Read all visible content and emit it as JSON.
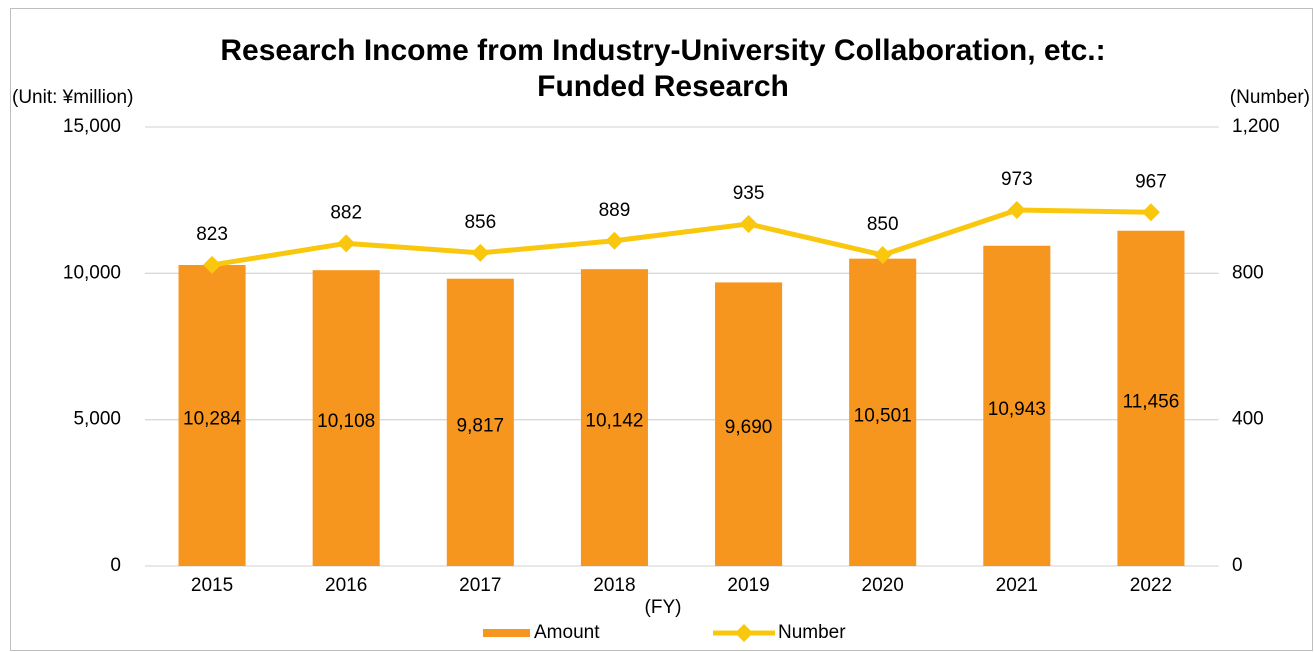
{
  "chart_data": {
    "type": "bar_line",
    "title": [
      "Research Income from Industry-University Collaboration, etc.:",
      "Funded Research"
    ],
    "y_label": "(Unit: ¥million)",
    "y2_label": "(Number)",
    "x_label": "(FY)",
    "categories": [
      "2015",
      "2016",
      "2017",
      "2018",
      "2019",
      "2020",
      "2021",
      "2022"
    ],
    "series": [
      {
        "name": "Amount",
        "type": "bar",
        "color": "#f7961e",
        "values": [
          10284,
          10108,
          9817,
          10142,
          9690,
          10501,
          10943,
          11456
        ],
        "value_labels": [
          "10,284",
          "10,108",
          "9,817",
          "10,142",
          "9,690",
          "10,501",
          "10,943",
          "11,456"
        ]
      },
      {
        "name": "Number",
        "type": "line",
        "axis": "y2",
        "color": "#f9c80e",
        "values": [
          823,
          882,
          856,
          889,
          935,
          850,
          973,
          967
        ]
      }
    ],
    "ylim": [
      0,
      15000
    ],
    "yticks": [
      0,
      {
        "value": 5000,
        "label": "5,000"
      },
      {
        "value": 10000,
        "label": "10,000"
      },
      {
        "value": 15000,
        "label": "15,000"
      }
    ],
    "y2lim": [
      0,
      1200
    ],
    "y2ticks": [
      0,
      400,
      800,
      {
        "value": 1200,
        "label": "1,200"
      }
    ],
    "grid": true,
    "legend": "bottom"
  }
}
